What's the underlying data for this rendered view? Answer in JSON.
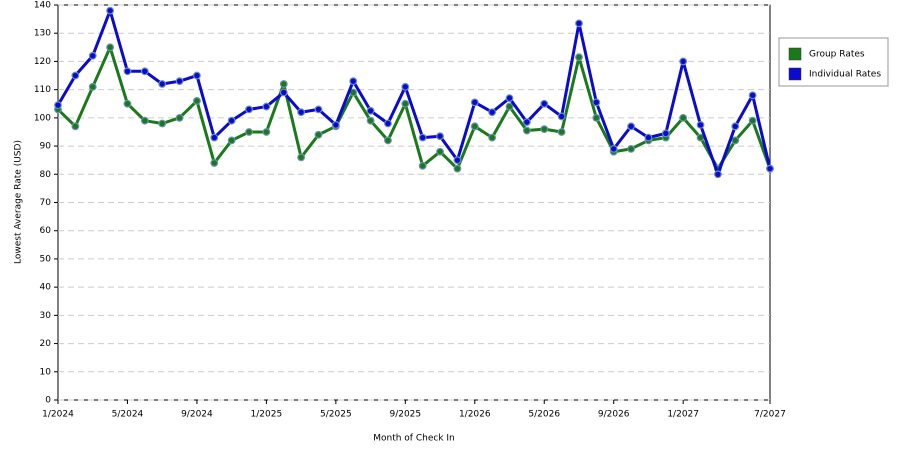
{
  "chart_data": {
    "type": "line",
    "x_label": "Month of Check In",
    "y_label": "Lowest Average Rate (USD)",
    "categories": [
      "1/2024",
      null,
      null,
      null,
      "5/2024",
      null,
      null,
      null,
      "9/2024",
      null,
      null,
      null,
      "1/2025",
      null,
      null,
      null,
      "5/2025",
      null,
      null,
      null,
      "9/2025",
      null,
      null,
      null,
      "1/2026",
      null,
      null,
      null,
      "5/2026",
      null,
      null,
      null,
      "9/2026",
      null,
      null,
      null,
      "1/2027",
      null,
      null,
      null,
      null,
      "7/2027"
    ],
    "series": [
      {
        "name": "Group Rates",
        "color": "#1a7a1a",
        "values": [
          103,
          97,
          111,
          125,
          105,
          99,
          98,
          100,
          106,
          84,
          92,
          95,
          95,
          112,
          86,
          94,
          97,
          109,
          99,
          92,
          105,
          83,
          88,
          82,
          97,
          93,
          104,
          95.5,
          96,
          95,
          121.5,
          100,
          88,
          89,
          92,
          93,
          100,
          93,
          82,
          92,
          99,
          82
        ]
      },
      {
        "name": "Individual Rates",
        "color": "#0a0ad0",
        "values": [
          104.5,
          115,
          122,
          138,
          116.5,
          116.5,
          112,
          113,
          115,
          93,
          99,
          103,
          104,
          109,
          102,
          103,
          97.5,
          113,
          102.5,
          98,
          111,
          93,
          93.5,
          85,
          105.5,
          102,
          107,
          98.5,
          105,
          100.5,
          133.5,
          105.5,
          89,
          97,
          93,
          94.5,
          120,
          97.5,
          80,
          97,
          108,
          82
        ]
      }
    ],
    "ylim": [
      0,
      140
    ],
    "yticks": [
      0,
      10,
      20,
      30,
      40,
      50,
      60,
      70,
      80,
      90,
      100,
      110,
      120,
      130,
      140
    ],
    "grid": true,
    "legend": "right"
  }
}
